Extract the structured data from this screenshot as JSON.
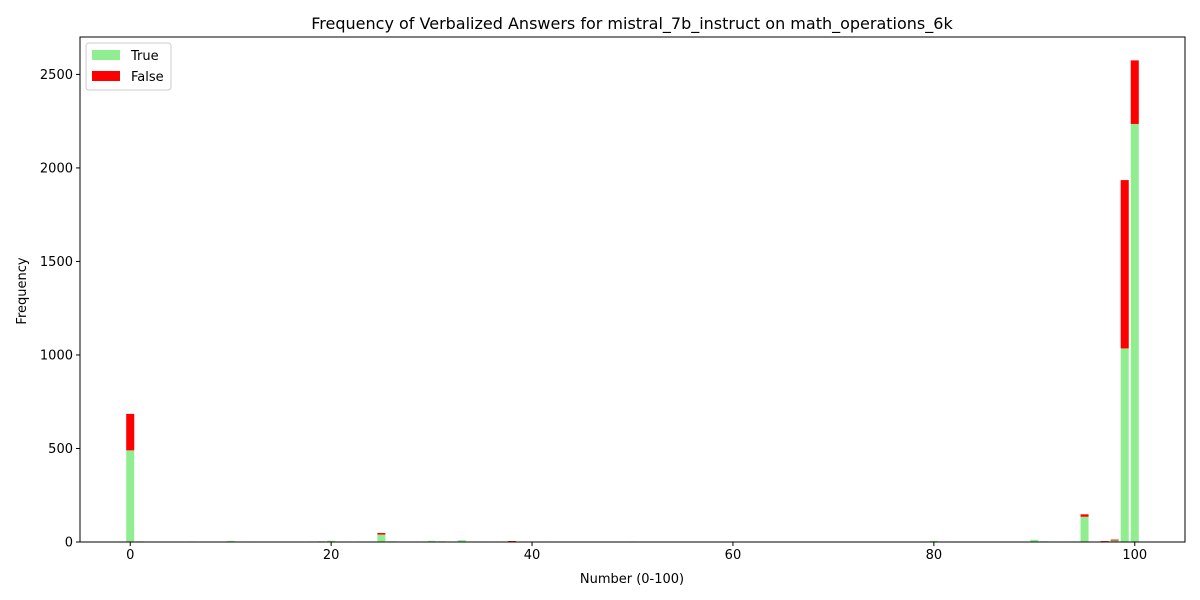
{
  "chart_data": {
    "type": "bar",
    "stacked": true,
    "title": "Frequency of Verbalized Answers for mistral_7b_instruct on math_operations_6k",
    "xlabel": "Number (0-100)",
    "ylabel": "Frequency",
    "xlim": [
      -5,
      105
    ],
    "ylim": [
      0,
      2700
    ],
    "xticks": [
      0,
      20,
      40,
      60,
      80,
      100
    ],
    "yticks": [
      0,
      500,
      1000,
      1500,
      2000,
      2500
    ],
    "grid": false,
    "legend_position": "top-left",
    "colors": {
      "True": "#90ee90",
      "False": "#ff0000"
    },
    "x": [
      0,
      1,
      6,
      10,
      12,
      17,
      18,
      19,
      20,
      21,
      22,
      23,
      24,
      25,
      26,
      28,
      29,
      30,
      31,
      32,
      33,
      34,
      35,
      36,
      37,
      38,
      40,
      41,
      42,
      47,
      50,
      60,
      62,
      64,
      65,
      66,
      71,
      73,
      75,
      80,
      82,
      83,
      85,
      90,
      91,
      93,
      94,
      95,
      96,
      97,
      98,
      99,
      100
    ],
    "series": [
      {
        "name": "True",
        "values": [
          490,
          4,
          3,
          6,
          3,
          2,
          3,
          4,
          7,
          3,
          2,
          3,
          3,
          40,
          4,
          2,
          3,
          6,
          4,
          2,
          10,
          3,
          3,
          2,
          3,
          2,
          2,
          3,
          2,
          2,
          3,
          3,
          2,
          2,
          2,
          2,
          2,
          2,
          2,
          6,
          3,
          2,
          2,
          12,
          4,
          2,
          3,
          135,
          2,
          3,
          8,
          1035,
          2235
        ]
      },
      {
        "name": "False",
        "values": [
          195,
          0,
          0,
          0,
          0,
          0,
          0,
          0,
          0,
          0,
          0,
          0,
          0,
          8,
          0,
          0,
          0,
          0,
          0,
          0,
          0,
          0,
          0,
          0,
          0,
          3,
          0,
          0,
          0,
          0,
          0,
          0,
          0,
          0,
          0,
          0,
          0,
          0,
          0,
          0,
          0,
          0,
          0,
          0,
          0,
          0,
          0,
          13,
          0,
          2,
          5,
          900,
          340
        ]
      }
    ]
  }
}
